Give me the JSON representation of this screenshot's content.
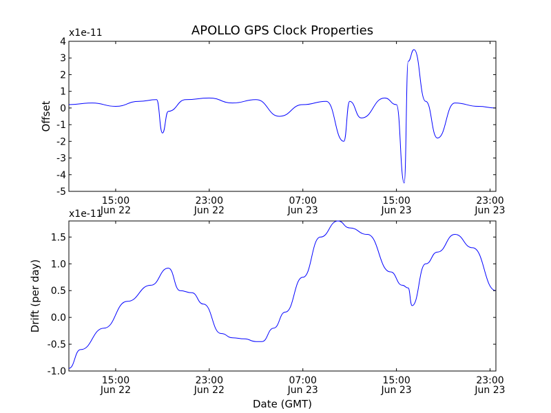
{
  "figure": {
    "title": "APOLLO GPS Clock Properties",
    "xlabel": "Date (GMT)"
  },
  "colors": {
    "series": "#0000ff",
    "axes": "#000000",
    "background": "#ffffff"
  },
  "chart_data": [
    {
      "type": "line",
      "title": "APOLLO GPS Clock Properties",
      "xlabel": "",
      "ylabel": "Offset",
      "y_multiplier": "x1e-11",
      "grid": false,
      "xlim": [
        "Jun 22 11:00",
        "Jun 23 23:30"
      ],
      "ylim": [
        -5,
        4
      ],
      "x_ticks": [
        {
          "time": "15:00",
          "date": "Jun 22"
        },
        {
          "time": "23:00",
          "date": "Jun 22"
        },
        {
          "time": "07:00",
          "date": "Jun 23"
        },
        {
          "time": "15:00",
          "date": "Jun 23"
        },
        {
          "time": "23:00",
          "date": "Jun 23"
        }
      ],
      "y_ticks": [
        "4",
        "3",
        "2",
        "1",
        "0",
        "-1",
        "-2",
        "-3",
        "-4",
        "-5"
      ],
      "series": [
        {
          "x": [
            "Jun 22 11:00",
            "Jun 22 13:00",
            "Jun 22 15:00",
            "Jun 22 17:00",
            "Jun 22 18:30",
            "Jun 22 19:00",
            "Jun 22 19:30",
            "Jun 22 21:00",
            "Jun 22 23:00",
            "Jun 23 01:00",
            "Jun 23 03:00",
            "Jun 23 05:00",
            "Jun 23 07:00",
            "Jun 23 09:00",
            "Jun 23 10:30",
            "Jun 23 11:00",
            "Jun 23 12:00",
            "Jun 23 14:00",
            "Jun 23 15:00",
            "Jun 23 15:40",
            "Jun 23 16:00",
            "Jun 23 16:30",
            "Jun 23 17:30",
            "Jun 23 18:30",
            "Jun 23 20:00",
            "Jun 23 22:00",
            "Jun 23 23:30"
          ],
          "y": [
            0.2,
            0.3,
            0.1,
            0.4,
            0.5,
            -1.5,
            -0.2,
            0.5,
            0.6,
            0.3,
            0.5,
            -0.5,
            0.2,
            0.4,
            -2.0,
            0.4,
            -0.6,
            0.6,
            0.2,
            -4.5,
            2.8,
            3.5,
            0.4,
            -1.8,
            0.3,
            0.1,
            0.0
          ]
        }
      ]
    },
    {
      "type": "line",
      "title": "",
      "xlabel": "Date (GMT)",
      "ylabel": "Drift (per day)",
      "y_multiplier": "x1e-11",
      "grid": false,
      "xlim": [
        "Jun 22 11:00",
        "Jun 23 23:30"
      ],
      "ylim": [
        -1.0,
        1.8
      ],
      "x_ticks": [
        {
          "time": "15:00",
          "date": "Jun 22"
        },
        {
          "time": "23:00",
          "date": "Jun 22"
        },
        {
          "time": "07:00",
          "date": "Jun 23"
        },
        {
          "time": "15:00",
          "date": "Jun 23"
        },
        {
          "time": "23:00",
          "date": "Jun 23"
        }
      ],
      "y_ticks": [
        "1.5",
        "1.0",
        "0.5",
        "0.0",
        "-0.5",
        "-1.0"
      ],
      "series": [
        {
          "x": [
            "Jun 22 11:00",
            "Jun 22 12:00",
            "Jun 22 14:00",
            "Jun 22 16:00",
            "Jun 22 18:00",
            "Jun 22 19:30",
            "Jun 22 20:30",
            "Jun 22 21:30",
            "Jun 22 22:30",
            "Jun 23 00:00",
            "Jun 23 01:00",
            "Jun 23 02:00",
            "Jun 23 03:00",
            "Jun 23 03:30",
            "Jun 23 04:30",
            "Jun 23 05:30",
            "Jun 23 07:00",
            "Jun 23 08:30",
            "Jun 23 10:00",
            "Jun 23 11:00",
            "Jun 23 12:30",
            "Jun 23 14:30",
            "Jun 23 15:30",
            "Jun 23 16:00",
            "Jun 23 16:20",
            "Jun 23 17:30",
            "Jun 23 18:30",
            "Jun 23 20:00",
            "Jun 23 21:30",
            "Jun 23 23:30"
          ],
          "y": [
            -0.95,
            -0.6,
            -0.2,
            0.3,
            0.6,
            0.92,
            0.5,
            0.46,
            0.25,
            -0.3,
            -0.38,
            -0.4,
            -0.45,
            -0.45,
            -0.2,
            0.1,
            0.75,
            1.5,
            1.8,
            1.67,
            1.55,
            0.85,
            0.6,
            0.55,
            0.22,
            1.0,
            1.22,
            1.55,
            1.3,
            0.5
          ]
        }
      ]
    }
  ]
}
